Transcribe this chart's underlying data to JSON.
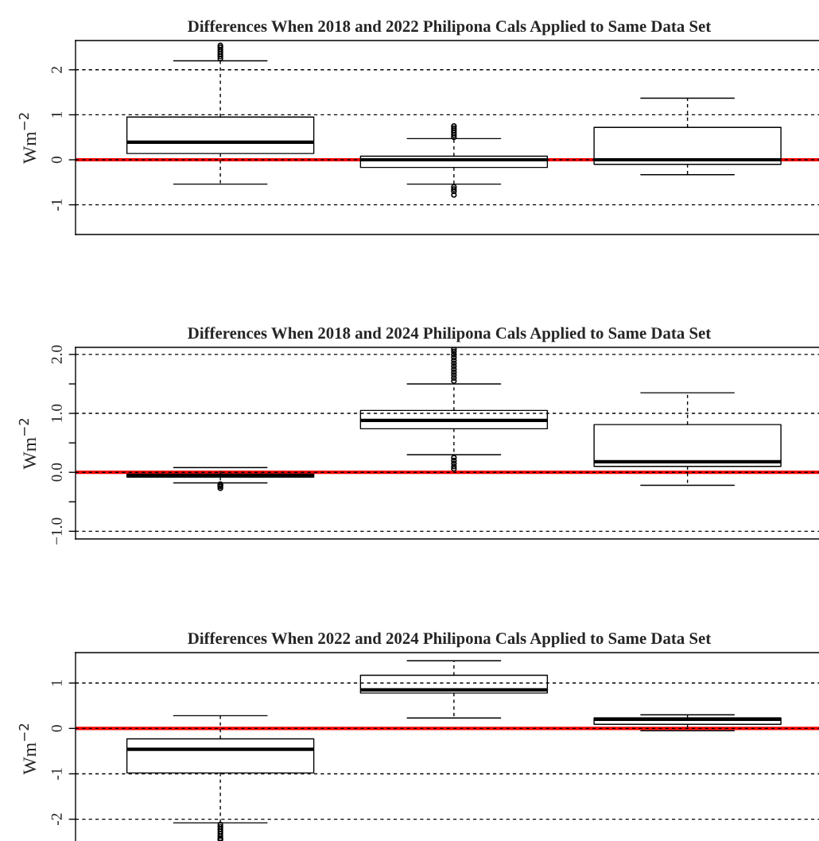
{
  "chart_data": [
    {
      "type": "box",
      "title": "Differences When 2018 and 2022 Philipona Cals Applied to Same Data Set",
      "ylabel": "Wm$^{−2}$",
      "categories": [
        null,
        null,
        null
      ],
      "tick_labels": "y",
      "grid": "y",
      "ylim": [
        -1.66,
        2.65
      ],
      "yticks": [
        -1,
        0,
        1,
        2
      ],
      "boxes": [
        {
          "low": -0.54,
          "q1": 0.14,
          "median": 0.39,
          "q3": 0.95,
          "high": 2.2,
          "outliers": [
            2.25,
            2.3,
            2.35,
            2.4,
            2.45,
            2.5,
            2.54
          ]
        },
        {
          "low": -0.54,
          "q1": -0.17,
          "median": 0.0,
          "q3": 0.08,
          "high": 0.47,
          "outliers": [
            0.5,
            0.55,
            0.6,
            0.65,
            0.7,
            0.75,
            -0.6,
            -0.65,
            -0.7,
            -0.78
          ]
        },
        {
          "low": -0.33,
          "q1": -0.1,
          "median": 0.0,
          "q3": 0.72,
          "high": 1.37
        }
      ],
      "ref_lines": [
        {
          "axis": "y",
          "value": 0,
          "color": "#ff0000"
        }
      ]
    },
    {
      "type": "box",
      "title": "Differences When 2018 and 2024 Philipona Cals Applied to Same Data Set",
      "ylabel": "Wm$^{−2}$",
      "categories": [
        null,
        null,
        null
      ],
      "tick_labels": "y",
      "grid": "y",
      "ylim": [
        -1.13,
        2.12
      ],
      "yticks": [
        {
          "value": -1,
          "label": "−1.0"
        },
        {
          "value": -0.5,
          "label": null
        },
        {
          "value": 0,
          "label": "0.0"
        },
        {
          "value": 0.5,
          "label": null
        },
        {
          "value": 1,
          "label": "1.0"
        },
        {
          "value": 1.5,
          "label": null
        },
        {
          "value": 2,
          "label": "2.0"
        }
      ],
      "boxes": [
        {
          "low": -0.18,
          "q1": -0.08,
          "median": -0.06,
          "q3": -0.03,
          "high": 0.08,
          "outliers": [
            -0.2,
            -0.22,
            -0.24,
            -0.27
          ]
        },
        {
          "low": 0.3,
          "q1": 0.74,
          "median": 0.88,
          "q3": 1.05,
          "high": 1.5,
          "outliers": [
            1.55,
            1.6,
            1.65,
            1.7,
            1.75,
            1.8,
            1.85,
            1.9,
            1.95,
            2.0,
            2.05,
            2.09,
            0.25,
            0.2,
            0.15,
            0.1,
            0.06
          ]
        },
        {
          "low": -0.22,
          "q1": 0.1,
          "median": 0.18,
          "q3": 0.81,
          "high": 1.35
        }
      ],
      "ref_lines": [
        {
          "axis": "y",
          "value": 0,
          "color": "#ff0000"
        }
      ]
    },
    {
      "type": "box",
      "title": "Differences When 2022 and 2024 Philipona Cals Applied to Same Data Set",
      "ylabel": "Wm$^{−2}$",
      "categories": [
        null,
        null,
        null
      ],
      "tick_labels": "y",
      "grid": "y",
      "ylim": [
        -2.55,
        1.67
      ],
      "yticks": [
        -2,
        -1,
        0,
        1
      ],
      "boxes": [
        {
          "low": -2.08,
          "q1": -0.98,
          "median": -0.46,
          "q3": -0.23,
          "high": 0.28,
          "outliers": [
            -2.12,
            -2.17,
            -2.22,
            -2.27,
            -2.32,
            -2.37,
            -2.42,
            -2.45
          ]
        },
        {
          "low": 0.23,
          "q1": 0.78,
          "median": 0.85,
          "q3": 1.17,
          "high": 1.49
        },
        {
          "low": -0.05,
          "q1": 0.09,
          "median": 0.2,
          "q3": 0.23,
          "high": 0.3
        }
      ],
      "ref_lines": [
        {
          "axis": "y",
          "value": 0,
          "color": "#ff0000"
        }
      ]
    }
  ]
}
